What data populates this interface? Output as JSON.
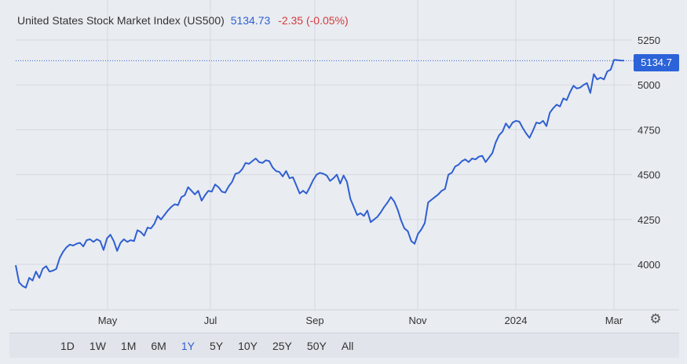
{
  "header": {
    "title": "United States Stock Market Index (US500)",
    "price": "5134.73",
    "change": "-2.35 (-0.05%)"
  },
  "price_tag": "5134.7",
  "settings_icon": "gear-icon",
  "range_buttons": [
    "1D",
    "1W",
    "1M",
    "6M",
    "1Y",
    "5Y",
    "10Y",
    "25Y",
    "50Y",
    "All"
  ],
  "active_range": "1Y",
  "colors": {
    "line": "#2f5fd1",
    "price_tag_bg": "#2c63d8",
    "change_negative": "#d23b3b",
    "background": "#e9ecf1"
  },
  "chart_data": {
    "type": "line",
    "title": "United States Stock Market Index (US500)",
    "xlabel": "",
    "ylabel": "",
    "x_ticks": [
      "May",
      "Jul",
      "Sep",
      "Nov",
      "2024",
      "Mar"
    ],
    "y_ticks": [
      4000,
      4250,
      4500,
      4750,
      5000,
      5250
    ],
    "ylim": [
      3840,
      5300
    ],
    "grid": true,
    "last_value": 5134.7,
    "series": [
      {
        "values": [
          3995,
          3900,
          3880,
          3870,
          3925,
          3910,
          3960,
          3925,
          3975,
          3990,
          3960,
          3965,
          3975,
          4035,
          4070,
          4095,
          4110,
          4105,
          4115,
          4120,
          4100,
          4135,
          4140,
          4125,
          4140,
          4130,
          4080,
          4145,
          4165,
          4130,
          4075,
          4120,
          4140,
          4125,
          4135,
          4130,
          4190,
          4180,
          4160,
          4205,
          4200,
          4225,
          4270,
          4250,
          4275,
          4300,
          4320,
          4335,
          4330,
          4375,
          4385,
          4430,
          4410,
          4390,
          4410,
          4355,
          4385,
          4410,
          4405,
          4445,
          4430,
          4405,
          4400,
          4435,
          4460,
          4505,
          4510,
          4530,
          4565,
          4560,
          4575,
          4590,
          4570,
          4565,
          4580,
          4575,
          4540,
          4520,
          4515,
          4490,
          4520,
          4480,
          4485,
          4440,
          4395,
          4410,
          4395,
          4430,
          4470,
          4500,
          4510,
          4505,
          4495,
          4465,
          4480,
          4500,
          4450,
          4495,
          4460,
          4365,
          4320,
          4275,
          4285,
          4270,
          4300,
          4235,
          4250,
          4265,
          4290,
          4320,
          4345,
          4375,
          4350,
          4305,
          4245,
          4200,
          4185,
          4130,
          4115,
          4170,
          4195,
          4230,
          4345,
          4360,
          4375,
          4390,
          4410,
          4420,
          4500,
          4510,
          4545,
          4555,
          4575,
          4585,
          4570,
          4590,
          4585,
          4600,
          4605,
          4570,
          4595,
          4620,
          4680,
          4720,
          4740,
          4785,
          4760,
          4790,
          4800,
          4795,
          4760,
          4730,
          4705,
          4745,
          4790,
          4785,
          4800,
          4770,
          4845,
          4870,
          4890,
          4880,
          4925,
          4915,
          4960,
          4995,
          4980,
          4985,
          5000,
          5010,
          4955,
          5060,
          5030,
          5040,
          5030,
          5075,
          5085,
          5140,
          5138,
          5136,
          5135
        ]
      }
    ]
  }
}
